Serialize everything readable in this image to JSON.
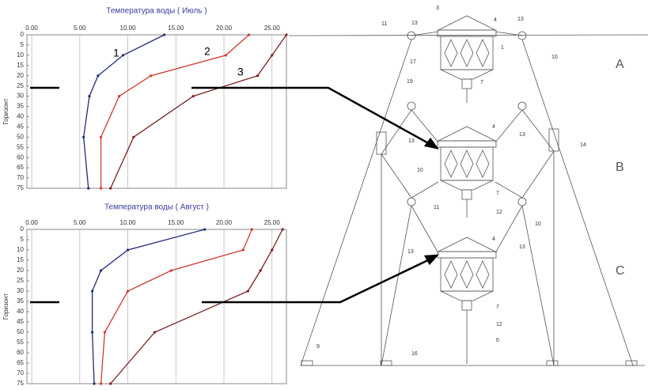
{
  "chart_data": [
    {
      "type": "line",
      "title": "Температура воды    ( Июль )",
      "y_label": "Горизонт",
      "xlim": [
        -0.5,
        26.5
      ],
      "xticks": [
        {
          "value": 0,
          "label": "0.00"
        },
        {
          "value": 5,
          "label": "5.00"
        },
        {
          "value": 10,
          "label": "10.00"
        },
        {
          "value": 15,
          "label": "15.00"
        },
        {
          "value": 20,
          "label": "20.00"
        },
        {
          "value": 25,
          "label": "25.00"
        }
      ],
      "ylim": [
        0,
        75
      ],
      "yticks": [
        0,
        5,
        10,
        15,
        20,
        25,
        30,
        35,
        40,
        45,
        50,
        55,
        60,
        65,
        70,
        75
      ],
      "y_inverted": true,
      "grid": true,
      "annotations": [
        "1",
        "2",
        "3"
      ],
      "series": [
        {
          "color": "#1f2a7a",
          "x": [
            13.8,
            9.5,
            6.9,
            6.0,
            5.4,
            5.9
          ],
          "y": [
            0,
            10,
            20,
            30,
            50,
            75
          ]
        },
        {
          "color": "#d03a2e",
          "x": [
            22.6,
            20.2,
            12.4,
            9.1,
            7.2,
            7.2
          ],
          "y": [
            0,
            10,
            20,
            30,
            50,
            75
          ]
        },
        {
          "color": "#7a1f1f",
          "x": [
            26.5,
            25.0,
            23.5,
            16.8,
            10.6,
            8.2
          ],
          "y": [
            0,
            10,
            20,
            30,
            50,
            75
          ]
        }
      ]
    },
    {
      "type": "line",
      "title": "Температура воды    ( Август )",
      "y_label": "Горизонт",
      "xlim": [
        -0.5,
        26.5
      ],
      "xticks": [
        {
          "value": 0,
          "label": "0.00"
        },
        {
          "value": 5,
          "label": "5.00"
        },
        {
          "value": 10,
          "label": "10.00"
        },
        {
          "value": 15,
          "label": "15.00"
        },
        {
          "value": 20,
          "label": "20.00"
        },
        {
          "value": 25,
          "label": "25.00"
        }
      ],
      "ylim": [
        0,
        75
      ],
      "yticks": [
        0,
        5,
        10,
        15,
        20,
        25,
        30,
        35,
        40,
        45,
        50,
        55,
        60,
        65,
        70,
        75
      ],
      "y_inverted": true,
      "grid": true,
      "series": [
        {
          "color": "#1f2a7a",
          "x": [
            18.0,
            10.0,
            7.2,
            6.3,
            6.3,
            6.5
          ],
          "y": [
            0,
            10,
            20,
            30,
            50,
            75
          ]
        },
        {
          "color": "#d03a2e",
          "x": [
            22.9,
            22.0,
            14.5,
            10.0,
            7.6,
            7.2
          ],
          "y": [
            0,
            10,
            20,
            30,
            50,
            75
          ]
        },
        {
          "color": "#7a1f1f",
          "x": [
            26.1,
            25.0,
            23.8,
            22.5,
            12.8,
            8.2
          ],
          "y": [
            0,
            10,
            20,
            30,
            50,
            75
          ]
        }
      ]
    }
  ],
  "diagram": {
    "labels": [
      "3",
      "4",
      "13",
      "13",
      "11",
      "10",
      "1",
      "17",
      "19",
      "7",
      "A",
      "4",
      "13",
      "13",
      "14",
      "10",
      "7",
      "11",
      "12",
      "B",
      "10",
      "4",
      "13",
      "13",
      "7",
      "12",
      "6",
      "9",
      "16",
      "C"
    ]
  }
}
